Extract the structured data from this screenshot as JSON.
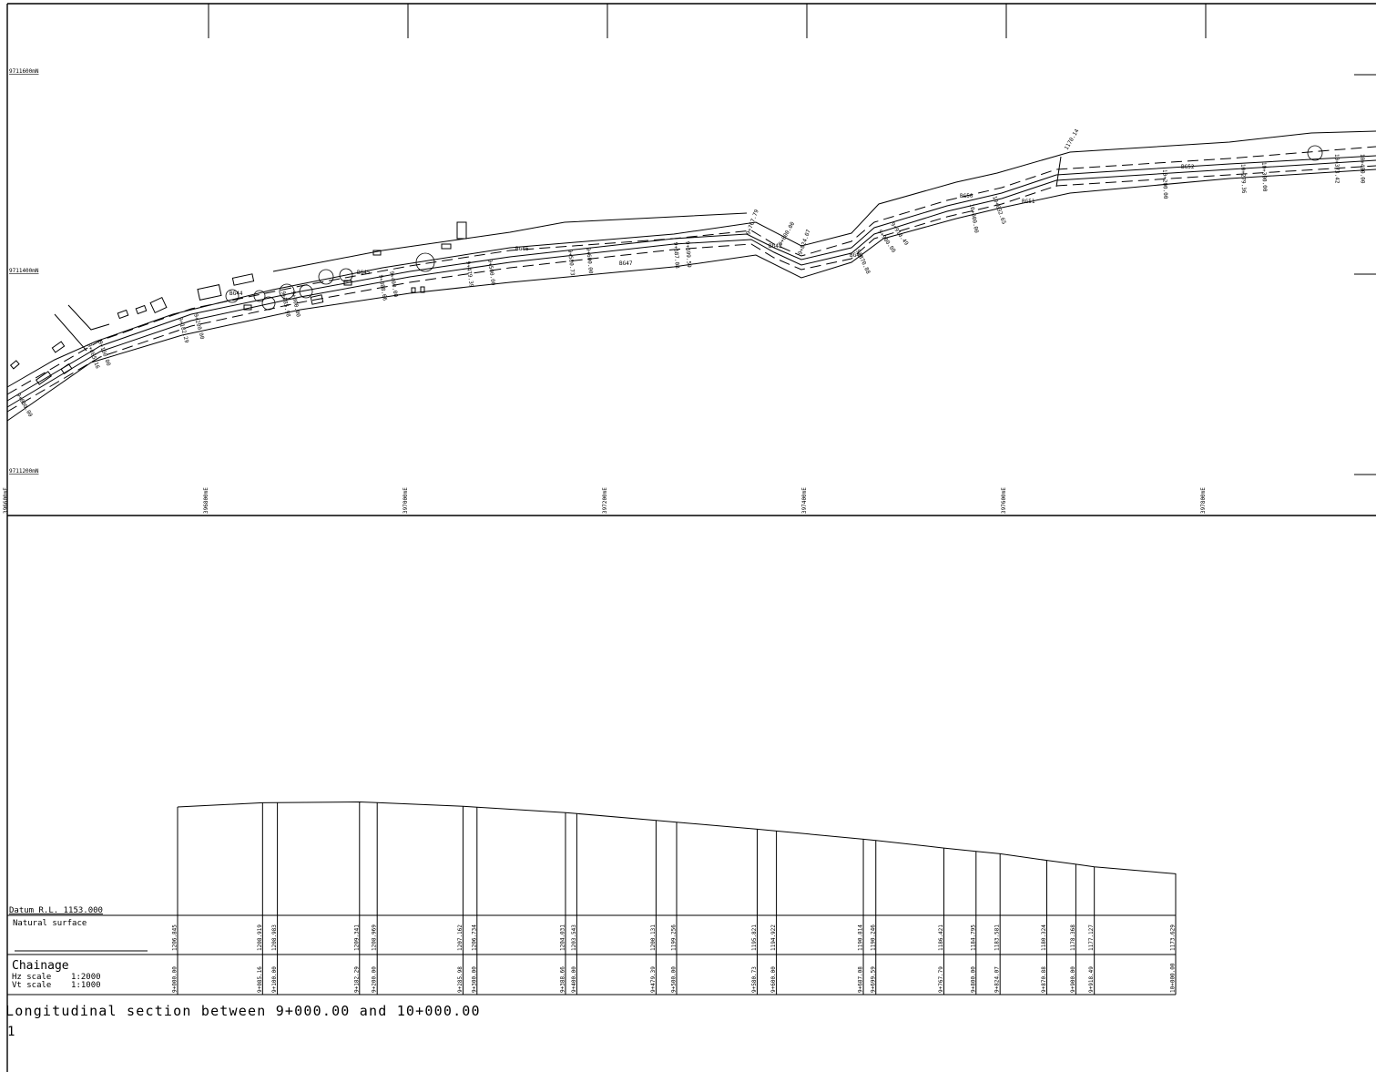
{
  "plan": {
    "northings": [
      "9711600mN",
      "9711400mN",
      "9711200mN"
    ],
    "eastings": [
      "396600mE",
      "396800mE",
      "397000mE",
      "397200mE",
      "397400mE",
      "397600mE",
      "397800mE"
    ],
    "chainage_labels": [
      "9+000.00",
      "9+085.16",
      "9+100.00",
      "9+182.29",
      "9+200.00",
      "9+285.98",
      "9+300.00",
      "9+388.66",
      "9+400.00",
      "9+479.39",
      "9+500.00",
      "9+580.73",
      "9+600.00",
      "9+687.08",
      "9+699.59",
      "9+767.79",
      "9+800.00",
      "9+824.07",
      "9+870.88",
      "9+900.00",
      "9+918.49",
      "10+000.00",
      "10+032.65",
      "10+200.00",
      "10+279.36",
      "10+300.00",
      "10+373.42",
      "10+400.00"
    ],
    "benchmarks": [
      "BG44",
      "BG45",
      "BG46",
      "BG47",
      "BG48",
      "BG49",
      "BG50",
      "BG51",
      "BG52"
    ],
    "annotation": "1170.14"
  },
  "profile": {
    "datum": "Datum R.L.  1153.000",
    "natural_surface_label": "Natural surface",
    "chainage_label": "Chainage",
    "hz_scale": "Hz scale    1:2000",
    "vt_scale": "Vt scale    1:1000",
    "title": "Longitudinal section between 9+000.00 and 10+000.00",
    "sheet_number": "1",
    "stations": [
      {
        "ch": "9+000.00",
        "rl": "1206.845",
        "ns": 1206.845
      },
      {
        "ch": "9+085.16",
        "rl": "1208.919",
        "ns": 1208.919
      },
      {
        "ch": "9+100.00",
        "rl": "1208.983",
        "ns": 1208.983
      },
      {
        "ch": "9+182.29",
        "rl": "1209.341",
        "ns": 1209.341
      },
      {
        "ch": "9+200.00",
        "rl": "1208.969",
        "ns": 1208.969
      },
      {
        "ch": "9+285.98",
        "rl": "1207.162",
        "ns": 1207.162
      },
      {
        "ch": "9+300.00",
        "rl": "1206.734",
        "ns": 1206.734
      },
      {
        "ch": "9+388.66",
        "rl": "1204.031",
        "ns": 1204.031
      },
      {
        "ch": "9+400.00",
        "rl": "1203.543",
        "ns": 1203.543
      },
      {
        "ch": "9+479.39",
        "rl": "1200.131",
        "ns": 1200.131
      },
      {
        "ch": "9+500.00",
        "rl": "1199.256",
        "ns": 1199.256
      },
      {
        "ch": "9+580.73",
        "rl": "1195.821",
        "ns": 1195.821
      },
      {
        "ch": "9+600.00",
        "rl": "1194.922",
        "ns": 1194.922
      },
      {
        "ch": "9+687.08",
        "rl": "1190.814",
        "ns": 1190.814
      },
      {
        "ch": "9+699.59",
        "rl": "1190.246",
        "ns": 1190.246
      },
      {
        "ch": "9+767.79",
        "rl": "1186.421",
        "ns": 1186.421
      },
      {
        "ch": "9+800.00",
        "rl": "1184.795",
        "ns": 1184.795
      },
      {
        "ch": "9+824.07",
        "rl": "1183.581",
        "ns": 1183.581
      },
      {
        "ch": "9+870.88",
        "rl": "1180.324",
        "ns": 1180.324
      },
      {
        "ch": "9+900.00",
        "rl": "1178.368",
        "ns": 1178.368
      },
      {
        "ch": "9+918.49",
        "rl": "1177.127",
        "ns": 1177.127
      },
      {
        "ch": "10+000.00",
        "rl": "1173.629",
        "ns": 1173.629
      }
    ]
  }
}
